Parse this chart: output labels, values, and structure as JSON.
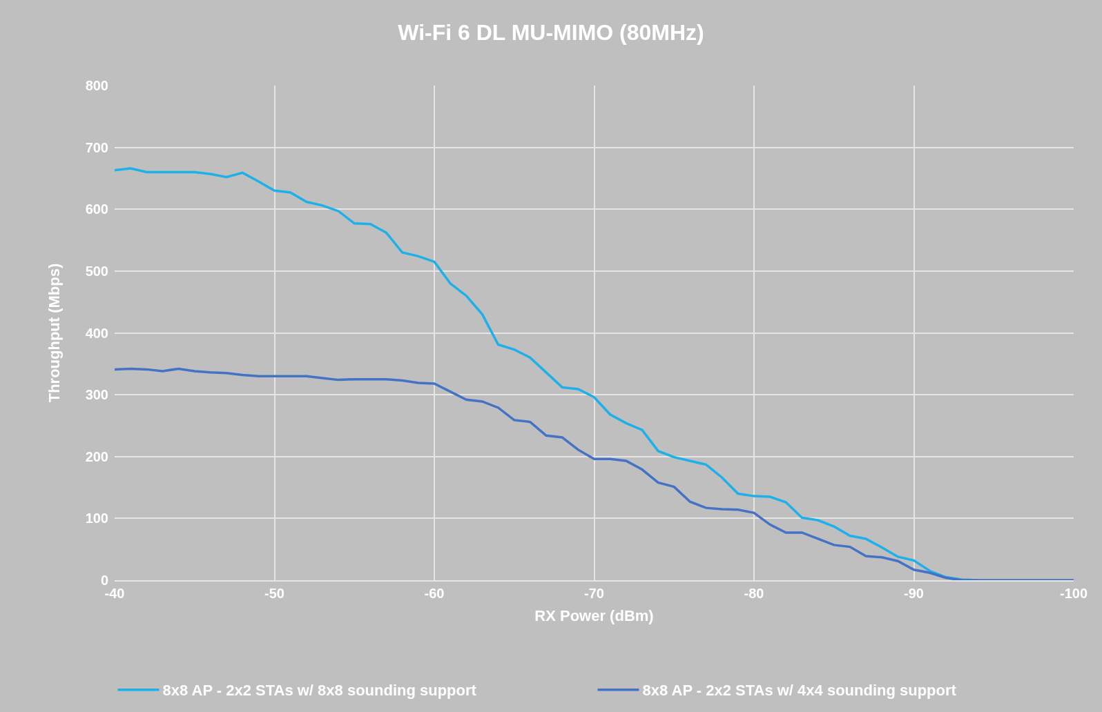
{
  "chart_data": {
    "type": "line",
    "title": "Wi-Fi 6 DL MU-MIMO (80MHz)",
    "xlabel": "RX Power (dBm)",
    "ylabel": "Throughput (Mbps)",
    "x": [
      -40,
      -41,
      -42,
      -43,
      -44,
      -45,
      -46,
      -47,
      -48,
      -49,
      -50,
      -51,
      -52,
      -53,
      -54,
      -55,
      -56,
      -57,
      -58,
      -59,
      -60,
      -61,
      -62,
      -63,
      -64,
      -65,
      -66,
      -67,
      -68,
      -69,
      -70,
      -71,
      -72,
      -73,
      -74,
      -75,
      -76,
      -77,
      -78,
      -79,
      -80,
      -81,
      -82,
      -83,
      -84,
      -85,
      -86,
      -87,
      -88,
      -89,
      -90,
      -91,
      -92,
      -93,
      -94,
      -95,
      -96,
      -97,
      -98,
      -99,
      -100
    ],
    "series": [
      {
        "name": "8x8 AP - 2x2 STAs w/ 8x8 sounding support",
        "color": "#1eb0e8",
        "values": [
          663,
          666,
          660,
          660,
          660,
          660,
          657,
          652,
          659,
          645,
          630,
          627,
          612,
          606,
          597,
          577,
          576,
          562,
          530,
          524,
          515,
          480,
          460,
          430,
          381,
          373,
          360,
          336,
          312,
          309,
          296,
          268,
          254,
          243,
          209,
          199,
          193,
          187,
          166,
          140,
          136,
          135,
          126,
          101,
          97,
          87,
          72,
          67,
          53,
          38,
          32,
          15,
          5,
          1,
          0,
          null,
          null,
          null,
          null,
          null,
          null
        ]
      },
      {
        "name": "8x8 AP - 2x2 STAs w/ 4x4 sounding support",
        "color": "#4472c4",
        "values": [
          341,
          342,
          341,
          338,
          342,
          338,
          336,
          335,
          332,
          330,
          330,
          330,
          330,
          327,
          324,
          325,
          325,
          325,
          323,
          319,
          318,
          305,
          292,
          289,
          279,
          259,
          256,
          234,
          231,
          211,
          196,
          196,
          193,
          179,
          158,
          151,
          127,
          117,
          115,
          114,
          109,
          90,
          77,
          77,
          67,
          57,
          54,
          39,
          37,
          31,
          17,
          12,
          4,
          0,
          0,
          0,
          0,
          0,
          0,
          0,
          0
        ]
      }
    ],
    "xlim": [
      -40,
      -100
    ],
    "xticks": [
      -40,
      -50,
      -60,
      -70,
      -80,
      -90,
      -100
    ],
    "ylim": [
      0,
      800
    ],
    "yticks": [
      0,
      100,
      200,
      300,
      400,
      500,
      600,
      700,
      800
    ],
    "grid": true,
    "legend": "bottom",
    "marker": "none",
    "line_style": "solid"
  }
}
